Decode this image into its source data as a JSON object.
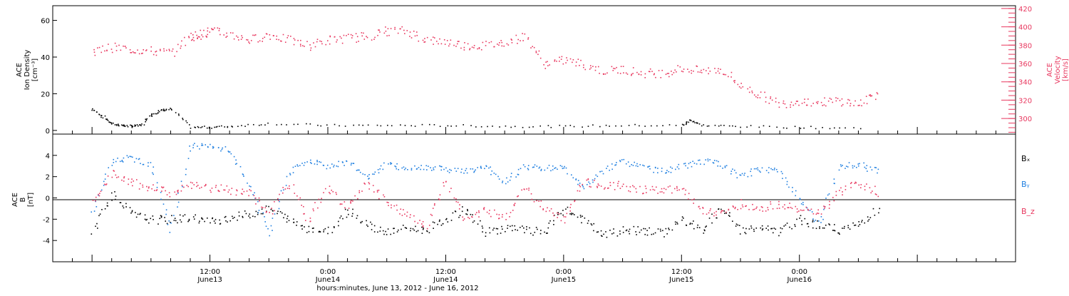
{
  "colors": {
    "density": "#000000",
    "velocity": "#e8385f",
    "bx": "#000000",
    "by": "#1f7fe0",
    "bz": "#e8385f",
    "frame": "#000000"
  },
  "chart_data": [
    {
      "type": "scatter",
      "panel": "top",
      "ylabel_left": [
        "ACE",
        "Ion Density",
        "[cm⁻³]"
      ],
      "ylabel_right": [
        "ACE",
        "Velocity",
        "[km/s]"
      ],
      "ylim_left": [
        -2,
        68
      ],
      "ylim_right": [
        283,
        423
      ],
      "yticks_left": [
        0,
        20,
        40,
        60
      ],
      "yticks_right": [
        300,
        320,
        340,
        360,
        380,
        400,
        420
      ],
      "series": [
        {
          "axis": "left",
          "color": "#000000",
          "x": [
            0,
            1,
            2,
            3,
            4,
            5,
            6,
            7,
            8,
            10,
            12,
            14,
            18,
            24,
            30,
            36,
            42,
            48,
            54,
            60,
            61,
            62,
            66,
            72,
            78
          ],
          "y": [
            12,
            8,
            4,
            3,
            2.5,
            3,
            9,
            11,
            12,
            2,
            2,
            2.5,
            4,
            3,
            3,
            3,
            2.5,
            2.5,
            3,
            3,
            6,
            3,
            2.5,
            2,
            1.5
          ]
        },
        {
          "axis": "right",
          "color": "#e8385f",
          "x": [
            0,
            2,
            4,
            6,
            8,
            10,
            11,
            12,
            14,
            16,
            18,
            20,
            22,
            24,
            26,
            28,
            30,
            32,
            34,
            36,
            38,
            40,
            42,
            44,
            46,
            48,
            50,
            52,
            54,
            56,
            58,
            60,
            62,
            64,
            66,
            68,
            70,
            72,
            74,
            76,
            78,
            80
          ],
          "y": [
            374,
            378,
            376,
            374,
            372,
            390,
            392,
            396,
            392,
            386,
            392,
            386,
            380,
            386,
            388,
            390,
            396,
            396,
            386,
            384,
            380,
            380,
            384,
            390,
            360,
            364,
            360,
            352,
            354,
            350,
            350,
            355,
            352,
            354,
            336,
            326,
            316,
            320,
            318,
            320,
            316,
            328
          ]
        }
      ]
    },
    {
      "type": "scatter",
      "panel": "bottom",
      "ylabel": [
        "ACE",
        "B",
        "[nT]"
      ],
      "ylim": [
        -6,
        6
      ],
      "yticks": [
        -4,
        -2,
        0,
        2,
        4
      ],
      "legend": [
        "Bₓ",
        "Bᵧ",
        "B_z"
      ],
      "series": [
        {
          "name": "Bₓ",
          "color": "#000000",
          "x": [
            0,
            2,
            4,
            6,
            8,
            10,
            12,
            14,
            16,
            18,
            20,
            22,
            24,
            26,
            28,
            30,
            32,
            34,
            36,
            38,
            40,
            42,
            44,
            46,
            48,
            50,
            52,
            54,
            56,
            58,
            60,
            62,
            64,
            66,
            68,
            70,
            72,
            74,
            76,
            78,
            80
          ],
          "y": [
            -3,
            0.5,
            -1.5,
            -2,
            -2,
            -1.8,
            -2.2,
            -1.8,
            -1.5,
            -1,
            -2,
            -2.8,
            -3.2,
            -1,
            -2.5,
            -3.2,
            -2.8,
            -3,
            -2,
            -1,
            -3.2,
            -2.8,
            -3,
            -3.2,
            -1,
            -2,
            -3.5,
            -3,
            -3,
            -3.3,
            -2,
            -3,
            -1,
            -3,
            -2.8,
            -3.2,
            -2,
            -2.5,
            -3,
            -2.5,
            -1
          ]
        },
        {
          "name": "Bᵧ",
          "color": "#1f7fe0",
          "x": [
            0,
            2,
            4,
            6,
            8,
            10,
            12,
            14,
            16,
            18,
            20,
            22,
            24,
            26,
            28,
            30,
            32,
            34,
            36,
            38,
            40,
            42,
            44,
            46,
            48,
            50,
            52,
            54,
            56,
            58,
            60,
            62,
            64,
            66,
            68,
            70,
            72,
            74,
            76,
            78,
            80
          ],
          "y": [
            -1.5,
            3.5,
            3.8,
            3.2,
            -3,
            5,
            4.8,
            4.5,
            1,
            -3.5,
            2.5,
            3.5,
            3,
            3.5,
            2,
            3.2,
            2.8,
            3,
            2.8,
            2.5,
            3,
            1.5,
            3,
            2.8,
            3,
            1,
            2.5,
            3.5,
            3,
            2.5,
            3,
            3.5,
            3.2,
            2,
            2.8,
            2.5,
            0,
            -2.5,
            3,
            3.2,
            2.5
          ]
        },
        {
          "name": "B_z",
          "color": "#e8385f",
          "x": [
            0,
            2,
            4,
            6,
            8,
            10,
            12,
            14,
            16,
            18,
            20,
            22,
            24,
            26,
            28,
            30,
            32,
            34,
            36,
            38,
            40,
            42,
            44,
            46,
            48,
            50,
            52,
            54,
            56,
            58,
            60,
            62,
            64,
            66,
            68,
            70,
            72,
            74,
            76,
            78,
            80
          ],
          "y": [
            -0.5,
            2.5,
            1.5,
            1,
            0.5,
            1.2,
            1,
            0.8,
            0.5,
            -1.5,
            1.5,
            -2,
            1,
            -1,
            1.5,
            -0.5,
            -1.5,
            -2.5,
            1.5,
            -2,
            -1,
            -2,
            1.2,
            -1,
            -2,
            1.5,
            1.2,
            1.2,
            0.8,
            0.8,
            1,
            -1,
            -1.5,
            -0.5,
            -1,
            -0.5,
            -1,
            -1.5,
            0.5,
            1.5,
            0.5
          ]
        }
      ]
    }
  ],
  "x_axis": {
    "range_hours": [
      -4,
      94
    ],
    "labels": [
      {
        "x": 12,
        "line1": "12:00",
        "line2": "June13"
      },
      {
        "x": 24,
        "line1": "0:00",
        "line2": "June14"
      },
      {
        "x": 36,
        "line1": "12:00",
        "line2": "June14"
      },
      {
        "x": 48,
        "line1": "0:00",
        "line2": "June15"
      },
      {
        "x": 60,
        "line1": "12:00",
        "line2": "June15"
      },
      {
        "x": 72,
        "line1": "0:00",
        "line2": "June16"
      }
    ],
    "title": "hours:minutes, June 13, 2012 - June 16, 2012"
  }
}
